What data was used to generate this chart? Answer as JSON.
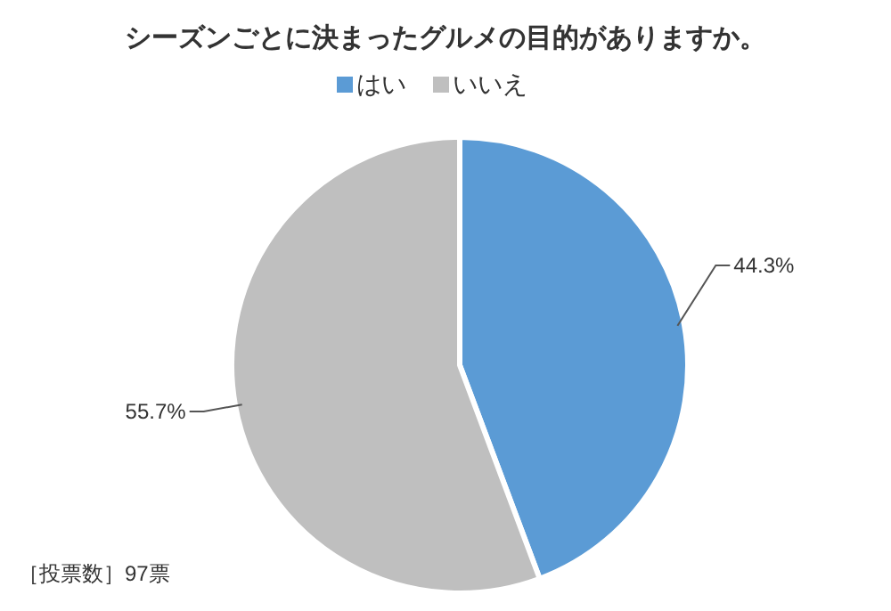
{
  "chart_data": {
    "type": "pie",
    "title": "シーズンごとに決まったグルメの目的がありますか。",
    "categories": [
      "はい",
      "いいえ"
    ],
    "values": [
      44.3,
      55.7
    ],
    "colors": [
      "#5b9bd5",
      "#bfbfbf"
    ],
    "legend": "top",
    "value_labels": [
      "44.3%",
      "55.7%"
    ],
    "annotations": [
      "［投票数］97票"
    ]
  }
}
